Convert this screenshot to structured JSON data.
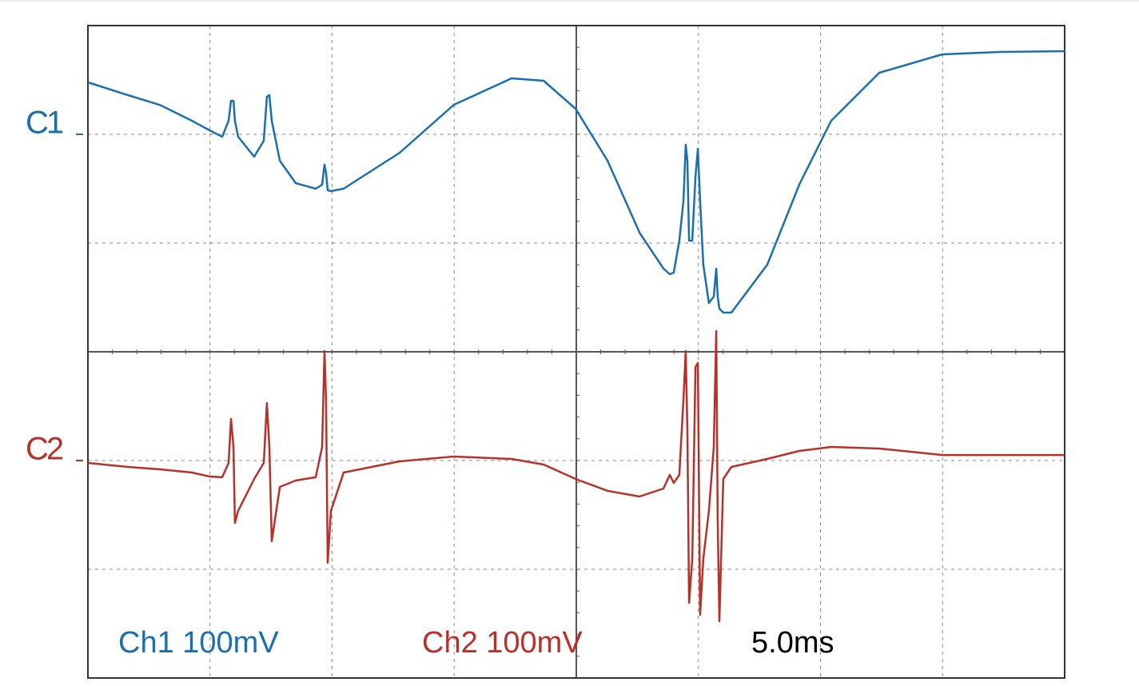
{
  "chart_data": {
    "type": "line",
    "xlim": [
      0,
      40
    ],
    "x": [
      0,
      1.64,
      2.95,
      4.26,
      4.98,
      5.5,
      5.76,
      5.86,
      5.96,
      6.02,
      6.15,
      6.81,
      7.2,
      7.33,
      7.43,
      7.53,
      7.86,
      8.51,
      9.33,
      9.59,
      9.69,
      9.75,
      9.82,
      9.95,
      10.47,
      12.77,
      14.99,
      17.35,
      18.66,
      19.97,
      21.28,
      22.59,
      23.57,
      23.83,
      23.99,
      24.22,
      24.39,
      24.48,
      24.55,
      24.62,
      24.75,
      24.88,
      24.98,
      25.07,
      25.2,
      25.43,
      25.63,
      25.73,
      25.79,
      25.86,
      26.02,
      26.35,
      27.82,
      29.13,
      30.44,
      32.41,
      34.99,
      37.32,
      40
    ],
    "series": [
      {
        "name": "C1",
        "color": "#1a6fad",
        "scale_label": "Ch1 100mV",
        "ylim": [
          -500,
          100
        ],
        "values": [
          47.8,
          36,
          27,
          12.5,
          3.7,
          -2.2,
          12.5,
          30.9,
          30.9,
          12.5,
          -2.2,
          -20.6,
          -5.9,
          34.6,
          36,
          12.5,
          -24.3,
          -44.9,
          -50,
          -46.3,
          -27.9,
          -35.3,
          -51.5,
          -52.2,
          -50,
          -16.9,
          27.2,
          51.5,
          49.3,
          23.5,
          -24.3,
          -90.4,
          -123.5,
          -128.7,
          -127.2,
          -97.8,
          -61,
          -9.6,
          -24.3,
          -97.8,
          -97.8,
          -39,
          -13.2,
          -61,
          -119.9,
          -155.1,
          -149.3,
          -123.5,
          -149.3,
          -160.3,
          -164,
          -164,
          -119.9,
          -46.3,
          12.5,
          56.6,
          73.5,
          75.7,
          76.5
        ]
      },
      {
        "name": "C2",
        "color": "#b8302a",
        "scale_label": "Ch2 100mV",
        "ylim": [
          -200,
          400
        ],
        "values": [
          -2.2,
          -5.9,
          -8.1,
          -11,
          -14.7,
          -15.4,
          -2.2,
          38.2,
          12.5,
          -57.4,
          -46.3,
          -16.9,
          -2.2,
          52.9,
          12.5,
          -74.3,
          -24.3,
          -18.4,
          -15.4,
          12.5,
          100.7,
          56.6,
          -94.1,
          -46.3,
          -11,
          -0.7,
          3.7,
          1.5,
          -3.7,
          -16.9,
          -27.9,
          -33.1,
          -25.7,
          -13.2,
          -20.6,
          -13.2,
          56.6,
          100.7,
          27.2,
          -130.9,
          -90.4,
          86,
          89.7,
          -141.9,
          -90.4,
          -46.3,
          12.5,
          119.1,
          -53.7,
          -147.8,
          -16.9,
          -5.9,
          1.5,
          8.8,
          12.5,
          11,
          5.1,
          5.1,
          5.1
        ]
      }
    ],
    "time_label": "5.0ms"
  }
}
